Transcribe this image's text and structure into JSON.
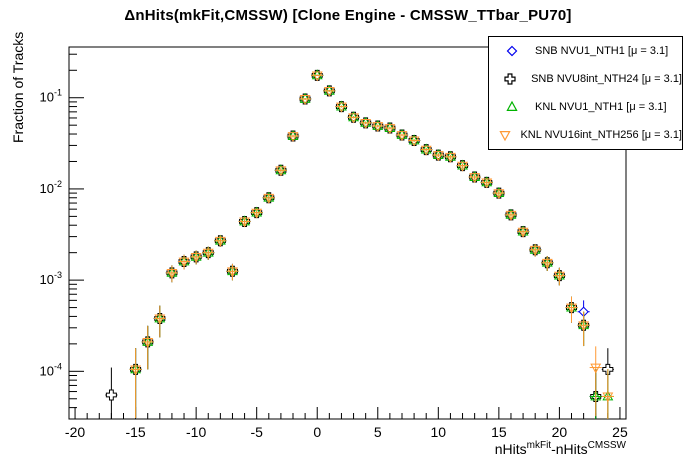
{
  "title": "ΔnHits(mkFit,CMSSW) [Clone Engine - CMSSW_TTbar_PU70]",
  "legend": {
    "items": [
      {
        "label": "SNB NVU1_NTH1 [μ =  3.1]",
        "marker": "open-diamond",
        "color": "#0000ee"
      },
      {
        "label": "SNB NVU8int_NTH24 [μ =  3.1]",
        "marker": "open-cross",
        "color": "#000000"
      },
      {
        "label": "KNL NVU1_NTH1 [μ =  3.1]",
        "marker": "open-triangle-up",
        "color": "#00b300"
      },
      {
        "label": "KNL NVU16int_NTH256 [μ =  3.1]",
        "marker": "open-triangle-down",
        "color": "#ff9933"
      }
    ]
  },
  "chart_data": {
    "type": "scatter",
    "title": "ΔnHits(mkFit,CMSSW) [Clone Engine - CMSSW_TTbar_PU70]",
    "ylabel": "Fraction of Tracks",
    "xlabel": {
      "base1": "nHits",
      "sup1": "mkFit",
      "base2": "-nHits",
      "sup2": "CMSSW"
    },
    "xlim": [
      -20.5,
      25.5
    ],
    "ylim": [
      3e-05,
      0.36
    ],
    "yscale": "log",
    "xscale": "linear",
    "x_major_ticks": [
      -20,
      -15,
      -10,
      -5,
      0,
      5,
      10,
      15,
      20,
      25
    ],
    "x_minor_tick_step": 1,
    "y_major_tick_exponents": [
      -1,
      -2,
      -3,
      -4
    ],
    "grid": false,
    "legend_position": "top-right",
    "error_model": {
      "type": "poisson",
      "n_total_tracks": 19000
    },
    "common_points": [
      [
        -15,
        0.000105
      ],
      [
        -14,
        0.00021
      ],
      [
        -13,
        0.00038
      ],
      [
        -12,
        0.0012
      ],
      [
        -11,
        0.0016
      ],
      [
        -10,
        0.0018
      ],
      [
        -9,
        0.002
      ],
      [
        -8,
        0.0027
      ],
      [
        -7,
        0.00125
      ],
      [
        -6,
        0.0044
      ],
      [
        -5,
        0.0055
      ],
      [
        -4,
        0.008
      ],
      [
        -3,
        0.016
      ],
      [
        -2,
        0.038
      ],
      [
        -1,
        0.097
      ],
      [
        0,
        0.176
      ],
      [
        1,
        0.119
      ],
      [
        2,
        0.08
      ],
      [
        3,
        0.061
      ],
      [
        4,
        0.053
      ],
      [
        5,
        0.049
      ],
      [
        6,
        0.0465
      ],
      [
        7,
        0.039
      ],
      [
        8,
        0.034
      ],
      [
        9,
        0.027
      ],
      [
        10,
        0.0235
      ],
      [
        11,
        0.0225
      ],
      [
        12,
        0.018
      ],
      [
        13,
        0.0135
      ],
      [
        14,
        0.0118
      ],
      [
        15,
        0.009
      ],
      [
        16,
        0.0052
      ],
      [
        17,
        0.0034
      ],
      [
        18,
        0.00215
      ],
      [
        19,
        0.00155
      ],
      [
        20,
        0.00112
      ],
      [
        21,
        0.0005
      ]
    ],
    "series": [
      {
        "name": "SNB NVU1_NTH1 [μ = 3.1]",
        "marker": "open-diamond",
        "color": "#0000ee",
        "extra_points": [
          [
            22,
            0.00045
          ],
          [
            23,
            5.3e-05
          ]
        ]
      },
      {
        "name": "SNB NVU8int_NTH24 [μ = 3.1]",
        "marker": "open-cross",
        "color": "#000000",
        "extra_points": [
          [
            -17,
            5.5e-05
          ],
          [
            22,
            0.00032
          ],
          [
            23,
            5.3e-05
          ],
          [
            24,
            0.000105
          ]
        ]
      },
      {
        "name": "KNL NVU1_NTH1 [μ = 3.1]",
        "marker": "open-triangle-up",
        "color": "#00b300",
        "extra_points": [
          [
            22,
            0.00032
          ],
          [
            23,
            5.3e-05
          ],
          [
            24,
            5.3e-05
          ]
        ]
      },
      {
        "name": "KNL NVU16int_NTH256 [μ = 3.1]",
        "marker": "open-triangle-down",
        "color": "#ff9933",
        "extra_points": [
          [
            22,
            0.00032
          ],
          [
            23,
            0.00011
          ],
          [
            24,
            5.3e-05
          ]
        ]
      }
    ]
  }
}
